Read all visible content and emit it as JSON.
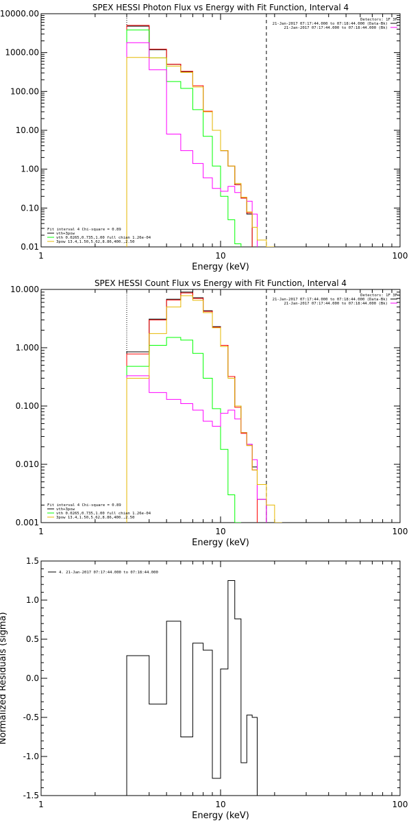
{
  "colors": {
    "black": "#000000",
    "red": "#ff0000",
    "green": "#00ff00",
    "magenta": "#ff00ff",
    "yellow": "#e6b800"
  },
  "chart_data": [
    {
      "type": "line",
      "title": "SPEX HESSI Photon Flux vs Energy with Fit Function, Interval 4",
      "xlabel": "Energy (keV)",
      "ylabel": "",
      "xscale": "log",
      "yscale": "log",
      "xlim": [
        1,
        100
      ],
      "ylim": [
        0.01,
        10000
      ],
      "xticks": [
        {
          "v": 1,
          "label": "1"
        },
        {
          "v": 10,
          "label": "10"
        },
        {
          "v": 100,
          "label": "100"
        }
      ],
      "yticks": [
        {
          "v": 0.01,
          "label": "0.01"
        },
        {
          "v": 0.1,
          "label": "0.10"
        },
        {
          "v": 1,
          "label": "1.00"
        },
        {
          "v": 10,
          "label": "10.00"
        },
        {
          "v": 100,
          "label": "100.00"
        },
        {
          "v": 1000,
          "label": "1000.00"
        },
        {
          "v": 10000,
          "label": "10000.00"
        }
      ],
      "vlines": [
        {
          "x": 3,
          "style": "dotted"
        },
        {
          "x": 18,
          "style": "dashed"
        }
      ],
      "edges": [
        3,
        4,
        5,
        6,
        7,
        8,
        9,
        10,
        11,
        12,
        13,
        14,
        15,
        16,
        18,
        20,
        22,
        25
      ],
      "series": [
        {
          "name": "vth+3pow",
          "color": "#000000",
          "values": [
            4800,
            1180,
            500,
            320,
            140,
            30,
            10,
            3,
            1.2,
            0.4,
            0.18,
            0.07,
            null,
            null,
            null,
            null,
            null
          ]
        },
        {
          "name": "",
          "color": "#ff0000",
          "values": [
            5000,
            1220,
            500,
            330,
            140,
            31,
            10,
            3,
            1.2,
            0.4,
            0.18,
            0.075,
            null,
            null,
            null,
            null,
            null
          ]
        },
        {
          "name": "vth 0.0265,0.735,1.00  full chian 1.26e-04",
          "color": "#00ff00",
          "values": [
            3800,
            730,
            180,
            120,
            34,
            7,
            1.2,
            0.2,
            0.05,
            0.012,
            null,
            null,
            null,
            null,
            null,
            null,
            null
          ]
        },
        {
          "name": "",
          "color": "#ff00ff",
          "values": [
            1800,
            360,
            8,
            3,
            1.4,
            0.6,
            0.32,
            0.27,
            0.36,
            0.25,
            0.19,
            0.15,
            0.07,
            null,
            null,
            null,
            null
          ]
        },
        {
          "name": "3pow 13.4,1.50,5.62,8.86,400.,2.50",
          "color": "#e6b800",
          "values": [
            750,
            730,
            450,
            310,
            130,
            30,
            10,
            3,
            1.2,
            0.43,
            0.19,
            0.08,
            0.032,
            0.015,
            0.01,
            null,
            null
          ]
        }
      ],
      "legend": {
        "position": "bottom-left",
        "header": "Fit interval  4   Chi-square = 0.89"
      },
      "info": {
        "position": "top-right",
        "lines": [
          "Detectors: 1F 3F",
          "21-Jan-2017 07:17:44.000 to 07:18:44.000 (Data-Bk)",
          "21-Jan-2017 07:17:44.000 to 07:18:44.000 (Bk)"
        ]
      }
    },
    {
      "type": "line",
      "title": "SPEX HESSI Count Flux vs Energy with Fit Function, Interval 4",
      "xlabel": "Energy (keV)",
      "ylabel": "",
      "xscale": "log",
      "yscale": "log",
      "xlim": [
        1,
        100
      ],
      "ylim": [
        0.001,
        10
      ],
      "xticks": [
        {
          "v": 1,
          "label": "1"
        },
        {
          "v": 10,
          "label": "10"
        },
        {
          "v": 100,
          "label": "100"
        }
      ],
      "yticks": [
        {
          "v": 0.001,
          "label": "0.001"
        },
        {
          "v": 0.01,
          "label": "0.010"
        },
        {
          "v": 0.1,
          "label": "0.100"
        },
        {
          "v": 1,
          "label": "1.000"
        },
        {
          "v": 10,
          "label": "10.000"
        }
      ],
      "vlines": [
        {
          "x": 3,
          "style": "dotted"
        },
        {
          "x": 18,
          "style": "dashed"
        }
      ],
      "edges": [
        3,
        4,
        5,
        6,
        7,
        8,
        9,
        10,
        11,
        12,
        13,
        14,
        15,
        16,
        18,
        20,
        22,
        25
      ],
      "series": [
        {
          "name": "vth+3pow",
          "color": "#000000",
          "values": [
            0.85,
            3.1,
            6.8,
            9.0,
            7.2,
            4.3,
            2.3,
            1.1,
            0.32,
            0.1,
            0.035,
            0.022,
            0.009,
            0.0025,
            null,
            null,
            null
          ]
        },
        {
          "name": "",
          "color": "#ff0000",
          "values": [
            0.78,
            3.0,
            6.6,
            8.7,
            7.0,
            4.2,
            2.25,
            1.1,
            0.32,
            0.095,
            0.034,
            0.021,
            0.008,
            null,
            null,
            null,
            null
          ]
        },
        {
          "name": "vth 0.0265,0.735,1.00  full chian 1.26e-04",
          "color": "#00ff00",
          "values": [
            0.48,
            1.1,
            1.5,
            1.35,
            0.8,
            0.3,
            0.09,
            0.018,
            0.003,
            0.0008,
            null,
            null,
            null,
            null,
            null,
            null,
            null
          ]
        },
        {
          "name": "",
          "color": "#ff00ff",
          "values": [
            0.33,
            0.17,
            0.13,
            0.11,
            0.085,
            0.055,
            0.045,
            0.075,
            0.085,
            0.06,
            0.035,
            0.022,
            0.012,
            0.0025,
            null,
            null,
            null
          ]
        },
        {
          "name": "3pow 13.4,1.50,5.62,8.86,400.,2.50",
          "color": "#e6b800",
          "values": [
            0.3,
            1.75,
            5.0,
            7.8,
            6.5,
            4.0,
            2.2,
            1.05,
            0.3,
            0.1,
            0.035,
            0.021,
            0.008,
            0.0045,
            0.002,
            0.0008,
            null
          ]
        }
      ],
      "legend": {
        "position": "bottom-left",
        "header": "Fit interval  4   Chi-square = 0.89"
      },
      "info": {
        "position": "top-right",
        "lines": [
          "Detectors: 1F 3F",
          "21-Jan-2017 07:17:44.000 to 07:18:44.000 (Data-Bk)",
          "21-Jan-2017 07:17:44.000 to 07:18:44.000 (Bk)"
        ]
      }
    },
    {
      "type": "line",
      "title": "",
      "xlabel": "Energy (keV)",
      "ylabel": "Normalized Residuals (sigma)",
      "xscale": "log",
      "yscale": "linear",
      "xlim": [
        1,
        100
      ],
      "ylim": [
        -1.5,
        1.5
      ],
      "xticks": [
        {
          "v": 1,
          "label": "1"
        },
        {
          "v": 10,
          "label": "10"
        },
        {
          "v": 100,
          "label": "100"
        }
      ],
      "yticks": [
        {
          "v": -1.5,
          "label": "-1.5"
        },
        {
          "v": -1.0,
          "label": "-1.0"
        },
        {
          "v": -0.5,
          "label": "-0.5"
        },
        {
          "v": 0.0,
          "label": "0.0"
        },
        {
          "v": 0.5,
          "label": "0.5"
        },
        {
          "v": 1.0,
          "label": "1.0"
        },
        {
          "v": 1.5,
          "label": "1.5"
        }
      ],
      "edges": [
        3,
        4,
        5,
        6,
        7,
        8,
        9,
        10,
        11,
        12,
        13,
        14,
        15,
        16,
        18
      ],
      "series": [
        {
          "name": "4. 21-Jan-2017 07:17:44.000 to 07:18:44.000",
          "color": "#000000",
          "values": [
            0.29,
            -0.33,
            0.73,
            -0.75,
            0.45,
            0.36,
            -1.28,
            0.12,
            1.25,
            0.76,
            -1.08,
            -0.47,
            -0.5
          ]
        }
      ],
      "legend": {
        "position": "top-left"
      }
    }
  ]
}
